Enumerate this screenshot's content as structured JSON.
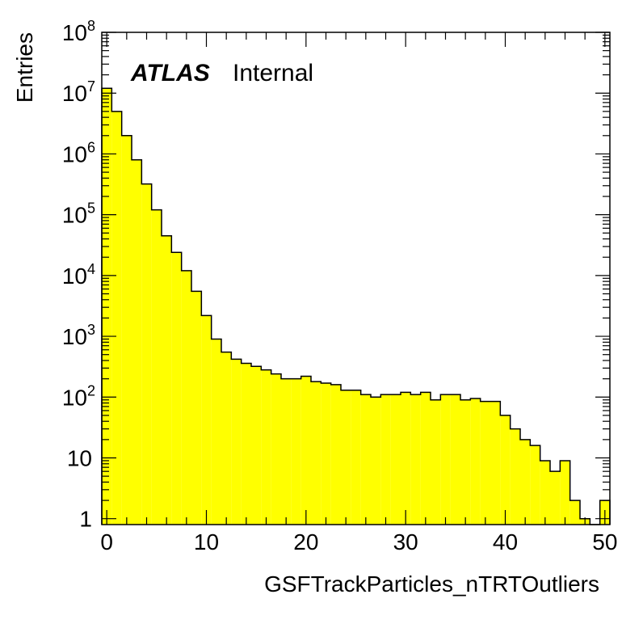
{
  "chart_data": {
    "type": "histogram",
    "title": "",
    "xlabel": "GSFTrackParticles_nTRTOutliers",
    "ylabel": "Entries",
    "xlim": [
      -0.5,
      50.5
    ],
    "ylim": [
      0.8,
      100000000
    ],
    "y_scale": "log",
    "bin_width": 1,
    "bin_low_edges": [
      -0.5,
      0.5,
      1.5,
      2.5,
      3.5,
      4.5,
      5.5,
      6.5,
      7.5,
      8.5,
      9.5,
      10.5,
      11.5,
      12.5,
      13.5,
      14.5,
      15.5,
      16.5,
      17.5,
      18.5,
      19.5,
      20.5,
      21.5,
      22.5,
      23.5,
      24.5,
      25.5,
      26.5,
      27.5,
      28.5,
      29.5,
      30.5,
      31.5,
      32.5,
      33.5,
      34.5,
      35.5,
      36.5,
      37.5,
      38.5,
      39.5,
      40.5,
      41.5,
      42.5,
      43.5,
      44.5,
      45.5,
      46.5,
      47.5,
      48.5,
      49.5
    ],
    "values": [
      12000000,
      5000000,
      2000000,
      800000,
      320000,
      120000,
      45000,
      24000,
      12000,
      5500,
      2200,
      900,
      550,
      420,
      360,
      320,
      280,
      240,
      200,
      200,
      220,
      180,
      170,
      160,
      130,
      130,
      110,
      100,
      110,
      110,
      120,
      110,
      120,
      90,
      110,
      110,
      90,
      95,
      85,
      85,
      50,
      30,
      20,
      16,
      9,
      6,
      9,
      2,
      1,
      0,
      2
    ],
    "fill_color": "#ffff00",
    "line_color": "#000000",
    "x_ticks": [
      0,
      10,
      20,
      30,
      40,
      50
    ],
    "y_ticks": [
      {
        "value": 1,
        "base": "1",
        "exp": ""
      },
      {
        "value": 10,
        "base": "10",
        "exp": ""
      },
      {
        "value": 100,
        "base": "10",
        "exp": "2"
      },
      {
        "value": 1000,
        "base": "10",
        "exp": "3"
      },
      {
        "value": 10000,
        "base": "10",
        "exp": "4"
      },
      {
        "value": 100000,
        "base": "10",
        "exp": "5"
      },
      {
        "value": 1000000,
        "base": "10",
        "exp": "6"
      },
      {
        "value": 10000000,
        "base": "10",
        "exp": "7"
      },
      {
        "value": 100000000,
        "base": "10",
        "exp": "8"
      }
    ],
    "annotation": {
      "brand": "ATLAS",
      "label": "Internal"
    },
    "legend": "none",
    "grid": false
  }
}
